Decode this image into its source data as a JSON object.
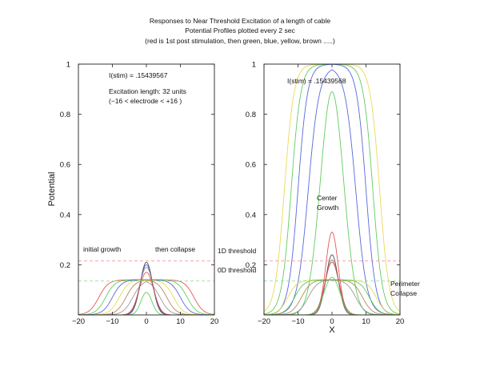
{
  "figure": {
    "title_lines": [
      "Responses to Near Threshold Excitation of a length of cable",
      "Potential Profiles plotted every 2 sec",
      "(red is 1st post stimulation, then green, blue, yellow, brown .....)"
    ],
    "ylabel": "Potential",
    "xlabel": "X"
  },
  "colors": {
    "red": "#e23a3a",
    "green": "#43c443",
    "blue": "#3b4fd6",
    "yellow": "#e6d23a",
    "brown": "#a8743a",
    "dark": "#333333",
    "gray": "#888888",
    "threshold_1d": "#f29aa0",
    "threshold_0d": "#86d987"
  },
  "chart_data": [
    {
      "type": "line",
      "name": "left-panel",
      "xlim": [
        -20,
        20
      ],
      "ylim": [
        0,
        1
      ],
      "xticks": [
        -20,
        -10,
        0,
        10,
        20
      ],
      "yticks": [
        0.2,
        0.4,
        0.6,
        0.8,
        1
      ],
      "tick_labels": {
        "x": [
          "−20",
          "−10",
          "0",
          "10",
          "20"
        ],
        "y": [
          "0.2",
          "0.4",
          "0.6",
          "0.8",
          "1"
        ]
      },
      "annotations": [
        "I(stim) = .15439567",
        "Excitation length: 32 units",
        "(−16 < electrode < +16 )",
        "initial growth",
        "then collapse"
      ],
      "thresholds": [
        {
          "label": "1D threshold",
          "y": 0.215
        },
        {
          "label": "0D threshold",
          "y": 0.135
        }
      ],
      "series": [
        {
          "color": "red",
          "kind": "plateau",
          "peak": 0.14,
          "edge": 14,
          "width": 1.4
        },
        {
          "color": "green",
          "kind": "plateau",
          "peak": 0.14,
          "edge": 12,
          "width": 1.4
        },
        {
          "color": "blue",
          "kind": "plateau",
          "peak": 0.14,
          "edge": 10,
          "width": 1.4
        },
        {
          "color": "yellow",
          "kind": "plateau",
          "peak": 0.14,
          "edge": 8,
          "width": 1.4
        },
        {
          "color": "brown",
          "kind": "plateau",
          "peak": 0.14,
          "edge": 6,
          "width": 1.4
        },
        {
          "color": "gray",
          "kind": "plateau",
          "peak": 0.14,
          "edge": 4,
          "width": 1.4
        },
        {
          "color": "dark",
          "kind": "gauss",
          "peak": 0.21,
          "sigma": 1.8
        },
        {
          "color": "blue",
          "kind": "gauss",
          "peak": 0.2,
          "sigma": 1.9
        },
        {
          "color": "gray",
          "kind": "gauss",
          "peak": 0.19,
          "sigma": 2.0
        },
        {
          "color": "red",
          "kind": "gauss",
          "peak": 0.17,
          "sigma": 2.1
        },
        {
          "color": "green",
          "kind": "gauss",
          "peak": 0.09,
          "sigma": 1.6
        }
      ]
    },
    {
      "type": "line",
      "name": "right-panel",
      "xlim": [
        -20,
        20
      ],
      "ylim": [
        0,
        1
      ],
      "xticks": [
        -20,
        -10,
        0,
        10,
        20
      ],
      "yticks": [
        0.2,
        0.4,
        0.6,
        0.8,
        1
      ],
      "tick_labels": {
        "x": [
          "−20",
          "−10",
          "0",
          "10",
          "20"
        ],
        "y": [
          "0.2",
          "0.4",
          "0.6",
          "0.8",
          "1"
        ]
      },
      "annotations": [
        "I(stim) = .15439568",
        "Center",
        "Growth",
        "1D threshold",
        "0D threshold",
        "Perimeter",
        "Collapse"
      ],
      "thresholds": [
        {
          "label": "1D threshold",
          "y": 0.215
        },
        {
          "label": "0D threshold",
          "y": 0.135
        }
      ],
      "series": [
        {
          "color": "yellow",
          "kind": "plateau",
          "peak": 1.0,
          "edge": 14,
          "width": 1.4
        },
        {
          "color": "green",
          "kind": "plateau",
          "peak": 1.0,
          "edge": 12,
          "width": 1.4
        },
        {
          "color": "blue",
          "kind": "plateau",
          "peak": 1.0,
          "edge": 10,
          "width": 1.4
        },
        {
          "color": "blue",
          "kind": "plateau",
          "peak": 0.99,
          "edge": 7,
          "width": 1.6
        },
        {
          "color": "green",
          "kind": "gauss",
          "peak": 0.89,
          "sigma": 3.4
        },
        {
          "color": "red",
          "kind": "gauss",
          "peak": 0.33,
          "sigma": 1.8
        },
        {
          "color": "yellow",
          "kind": "plateau",
          "peak": 0.14,
          "edge": 13,
          "width": 1.4
        },
        {
          "color": "green",
          "kind": "plateau",
          "peak": 0.14,
          "edge": 11,
          "width": 1.4
        },
        {
          "color": "brown",
          "kind": "plateau",
          "peak": 0.14,
          "edge": 9,
          "width": 1.4
        },
        {
          "color": "gray",
          "kind": "plateau",
          "peak": 0.14,
          "edge": 7,
          "width": 1.4
        },
        {
          "color": "dark",
          "kind": "gauss",
          "peak": 0.24,
          "sigma": 1.8
        },
        {
          "color": "gray",
          "kind": "gauss",
          "peak": 0.22,
          "sigma": 1.9
        },
        {
          "color": "red",
          "kind": "gauss",
          "peak": 0.21,
          "sigma": 2.1
        },
        {
          "color": "green",
          "kind": "gauss",
          "peak": 0.15,
          "sigma": 2.3
        }
      ]
    }
  ]
}
